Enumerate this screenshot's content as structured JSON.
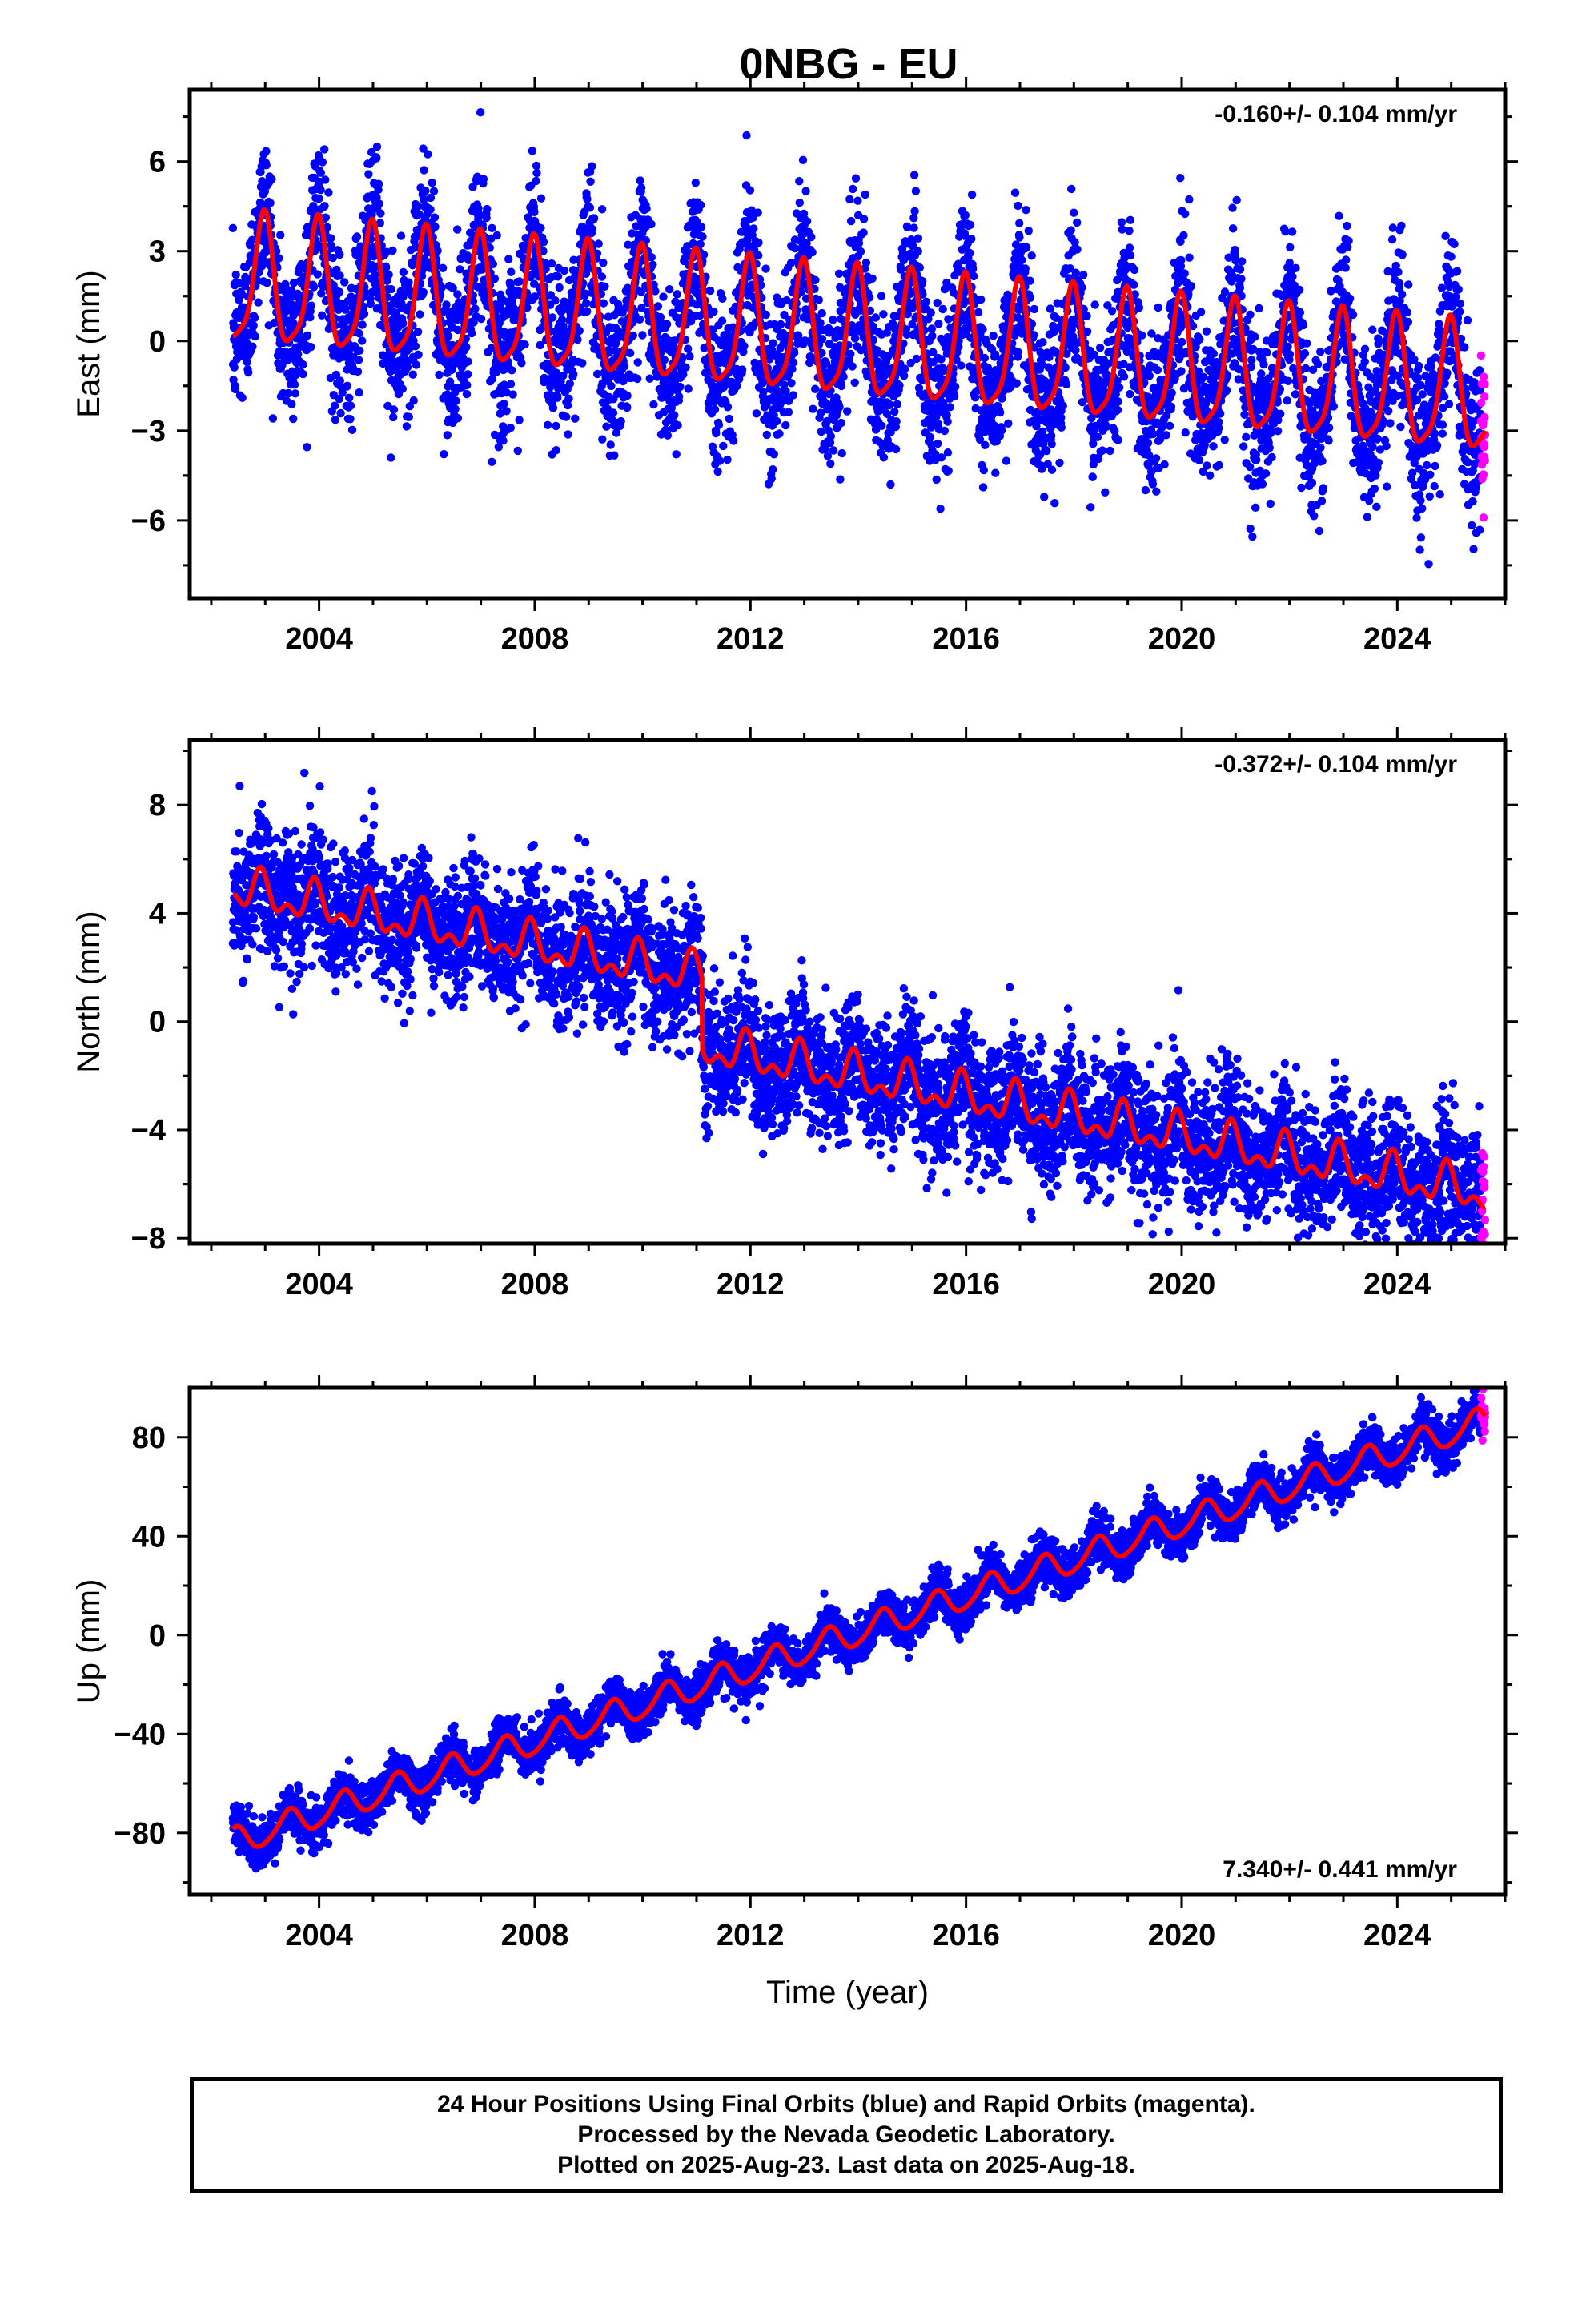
{
  "title": "0NBG - EU",
  "colors": {
    "final": "#0000ff",
    "rapid": "#ff00ff",
    "model": "#ff0000",
    "frame": "#000000"
  },
  "footer": {
    "line1": "24 Hour Positions Using Final Orbits (blue) and Rapid Orbits (magenta).",
    "line2": "Processed by the Nevada Geodetic Laboratory.",
    "line3": "Plotted on 2025-Aug-23. Last data on 2025-Aug-18."
  },
  "chart_data": [
    {
      "type": "scatter",
      "component": "east",
      "ylabel": "East (mm)",
      "xlabel": "",
      "xlim": [
        2001.6,
        2026.0
      ],
      "ylim": [
        -8.6,
        8.4
      ],
      "xticks": [
        2004,
        2008,
        2012,
        2016,
        2020,
        2024
      ],
      "yticks": [
        -6,
        -3,
        0,
        3,
        6
      ],
      "rate_label": "-0.160+/- 0.104 mm/yr",
      "rate_label_position": "top-right",
      "data_start": 2002.4,
      "data_end": 2025.63,
      "rapid_start": 2025.55,
      "model": {
        "offset": 1.9,
        "rate": -0.16,
        "annual_amp": 2.1,
        "annual_phase_deg": 10,
        "semiannual_amp": 0.5,
        "semiannual_phase_deg": 0
      },
      "scatter_sd": 1.3,
      "series": [
        {
          "name": "Final Orbits",
          "color": "#0000ff"
        },
        {
          "name": "Rapid Orbits",
          "color": "#ff00ff"
        },
        {
          "name": "Model",
          "color": "#ff0000"
        }
      ]
    },
    {
      "type": "scatter",
      "component": "north",
      "ylabel": "North (mm)",
      "xlabel": "",
      "xlim": [
        2001.6,
        2026.0
      ],
      "ylim": [
        -8.2,
        10.4
      ],
      "xticks": [
        2004,
        2008,
        2012,
        2016,
        2020,
        2024
      ],
      "yticks": [
        -8,
        -4,
        0,
        4,
        8
      ],
      "rate_label": "-0.372+/- 0.104 mm/yr",
      "rate_label_position": "top-right",
      "data_start": 2002.4,
      "data_end": 2025.63,
      "rapid_start": 2025.55,
      "model": {
        "offset": 4.9,
        "rate": -0.372,
        "annual_amp": 0.6,
        "annual_phase_deg": 30,
        "semiannual_amp": 0.4,
        "semiannual_phase_deg": 60,
        "step_time": 2011.1,
        "step": -2.6
      },
      "scatter_sd": 1.2,
      "series": [
        {
          "name": "Final Orbits",
          "color": "#0000ff"
        },
        {
          "name": "Rapid Orbits",
          "color": "#ff00ff"
        },
        {
          "name": "Model",
          "color": "#ff0000"
        }
      ]
    },
    {
      "type": "scatter",
      "component": "up",
      "ylabel": "Up (mm)",
      "xlabel": "Time (year)",
      "xlim": [
        2001.6,
        2026.0
      ],
      "ylim": [
        -105,
        100
      ],
      "xticks": [
        2004,
        2008,
        2012,
        2016,
        2020,
        2024
      ],
      "yticks": [
        -80,
        -40,
        0,
        40,
        80
      ],
      "rate_label": "7.340+/- 0.441 mm/yr",
      "rate_label_position": "bottom-right",
      "data_start": 2002.4,
      "data_end": 2025.63,
      "rapid_start": 2025.55,
      "model": {
        "offset": -84,
        "rate": 7.34,
        "annual_amp": 5.5,
        "annual_phase_deg": 200,
        "semiannual_amp": 0.8,
        "semiannual_phase_deg": 0
      },
      "scatter_sd": 4.5,
      "series": [
        {
          "name": "Final Orbits",
          "color": "#0000ff"
        },
        {
          "name": "Rapid Orbits",
          "color": "#ff00ff"
        },
        {
          "name": "Model",
          "color": "#ff0000"
        }
      ]
    }
  ]
}
